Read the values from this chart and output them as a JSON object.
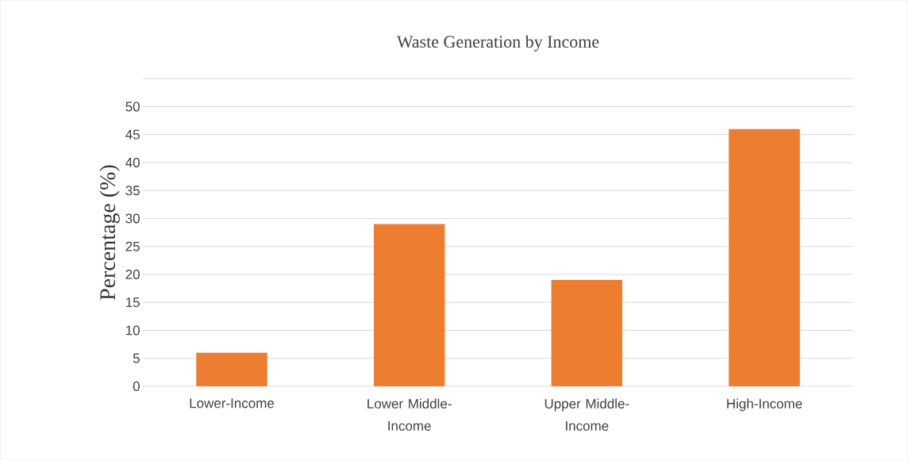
{
  "chart_data": {
    "type": "bar",
    "title": "Waste Generation by Income",
    "ylabel": "Percentage (%)",
    "categories": [
      "Lower-Income",
      "Lower Middle-Income",
      "Upper Middle-Income",
      "High-Income"
    ],
    "values": [
      6,
      29,
      19,
      46
    ],
    "color": "#ed7d31",
    "ylim": [
      0,
      55
    ],
    "yticks": [
      0,
      5,
      10,
      15,
      20,
      25,
      30,
      35,
      40,
      45,
      50,
      {
        "value": 55,
        "label": null
      }
    ],
    "grid": "y"
  }
}
